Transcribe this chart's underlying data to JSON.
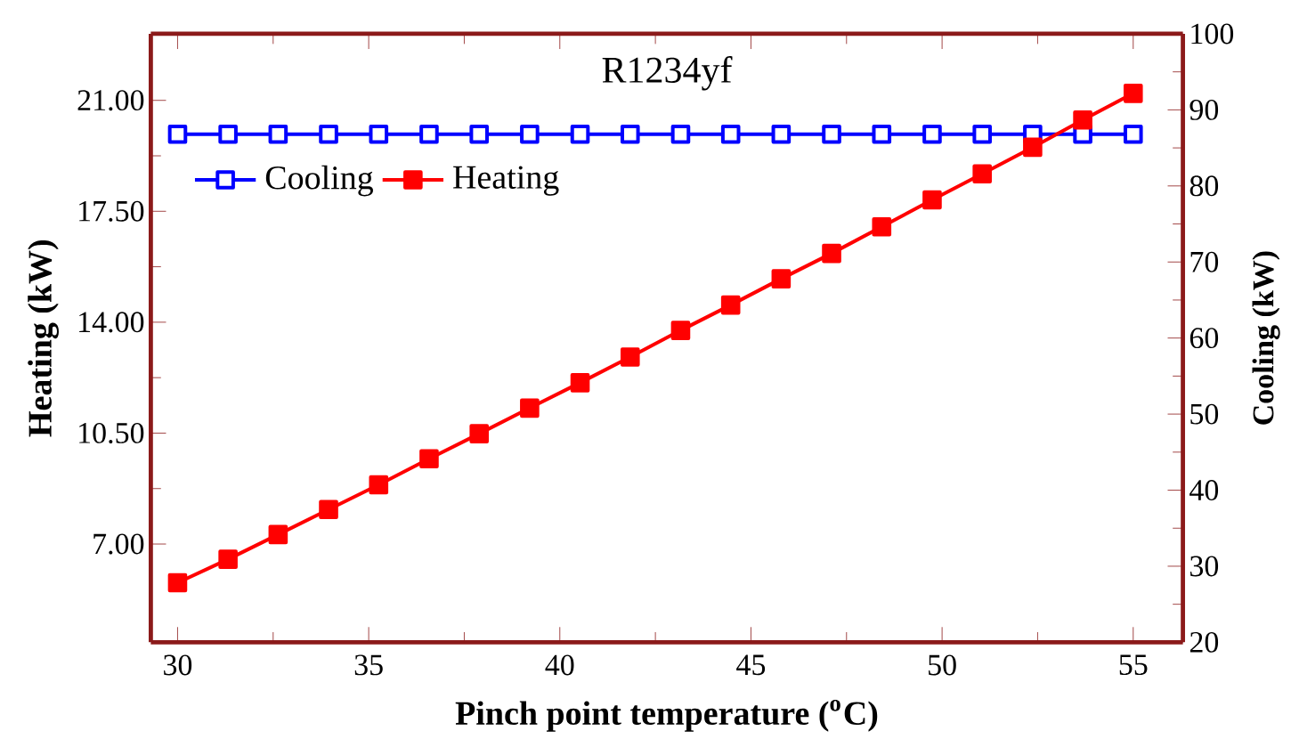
{
  "chart_data": {
    "type": "line",
    "title": "R1234yf",
    "xlabel": "Pinch point temperature ($^{o}$C)",
    "ylabel": "Heating (kW)",
    "y2label": "Cooling (kW)",
    "x": [
      30,
      31.32,
      32.63,
      33.95,
      35.26,
      36.58,
      37.89,
      39.21,
      40.53,
      41.84,
      43.16,
      44.47,
      45.79,
      47.11,
      48.42,
      49.74,
      51.05,
      52.37,
      53.68,
      55
    ],
    "series": [
      {
        "name": "Cooling",
        "color": "#0000ff",
        "axis": "y2",
        "values": [
          86.8,
          86.8,
          86.8,
          86.8,
          86.8,
          86.8,
          86.8,
          86.8,
          86.8,
          86.8,
          86.8,
          86.8,
          86.8,
          86.8,
          86.8,
          86.8,
          86.8,
          86.8,
          86.8,
          86.8
        ]
      },
      {
        "name": "Heating",
        "color": "#ff0000",
        "values": [
          5.78,
          6.52,
          7.3,
          8.09,
          8.87,
          9.69,
          10.48,
          11.29,
          12.09,
          12.9,
          13.74,
          14.54,
          15.37,
          16.17,
          17.01,
          17.86,
          18.68,
          19.52,
          20.38,
          21.22
        ]
      }
    ],
    "xlim": [
      29.3,
      56.3
    ],
    "xticks": [
      30,
      35,
      40,
      45,
      50,
      55
    ],
    "ylim": [
      3.9,
      23.1
    ],
    "yticks": [
      {
        "value": 7,
        "label": "7.00"
      },
      {
        "value": 10.5,
        "label": "10.50"
      },
      {
        "value": 14,
        "label": "14.00"
      },
      {
        "value": 17.5,
        "label": "17.50"
      },
      {
        "value": 21,
        "label": "21.00"
      }
    ],
    "y2lim": [
      20,
      100
    ],
    "y2ticks": [
      20,
      30,
      40,
      50,
      60,
      70,
      80,
      90,
      100
    ],
    "legend": "top left",
    "marker": "square",
    "line_style": "solid"
  }
}
